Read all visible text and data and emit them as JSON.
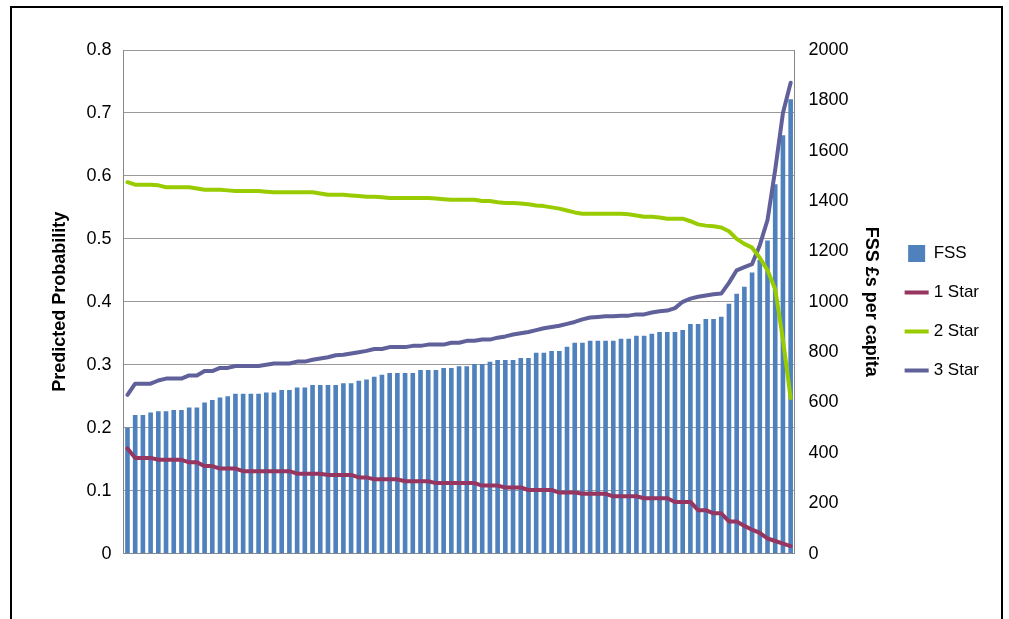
{
  "chart_data": {
    "type": "bar",
    "ylabel": "Predicted Probability",
    "y2label": "FSS £s per capita",
    "categories": [
      null,
      null,
      null,
      null,
      null,
      null,
      null,
      null,
      null,
      null,
      null,
      null,
      null,
      null,
      null,
      null,
      null,
      null,
      null,
      null,
      null,
      null,
      null,
      null,
      null,
      null,
      null,
      null,
      null,
      null,
      null,
      null,
      null,
      null,
      null,
      null,
      null,
      null,
      null,
      null,
      null,
      null,
      null,
      null,
      null,
      null,
      null,
      null,
      null,
      null,
      null,
      null,
      null,
      null,
      null,
      null,
      null,
      null,
      null,
      null,
      null,
      null,
      null,
      null,
      null,
      null,
      null,
      null,
      null,
      null,
      null,
      null,
      null,
      null,
      null,
      null,
      null,
      null,
      null,
      null,
      null,
      null,
      null,
      null,
      null,
      null,
      null
    ],
    "series": [
      {
        "name": "FSS",
        "axis": "y2",
        "color": "#4f81bd",
        "values": [
          500,
          550,
          550,
          560,
          565,
          565,
          570,
          570,
          580,
          580,
          600,
          610,
          620,
          625,
          635,
          635,
          635,
          635,
          640,
          640,
          650,
          650,
          660,
          660,
          670,
          670,
          670,
          670,
          677,
          677,
          686,
          691,
          702,
          710,
          717,
          717,
          717,
          717,
          729,
          729,
          729,
          737,
          737,
          744,
          744,
          753,
          753,
          762,
          769,
          769,
          769,
          777,
          777,
          798,
          798,
          805,
          805,
          821,
          837,
          837,
          845,
          845,
          845,
          845,
          853,
          853,
          865,
          865,
          873,
          880,
          880,
          880,
          888,
          912,
          912,
          932,
          932,
          941,
          992,
          1032,
          1060,
          1116,
          1167,
          1243,
          1467,
          1661,
          1804
        ]
      },
      {
        "name": "1 Star",
        "type": "line",
        "color": "#953560",
        "values": [
          0.167,
          0.152,
          0.152,
          0.152,
          0.149,
          0.149,
          0.149,
          0.149,
          0.145,
          0.145,
          0.139,
          0.139,
          0.135,
          0.135,
          0.135,
          0.131,
          0.131,
          0.131,
          0.131,
          0.131,
          0.131,
          0.131,
          0.127,
          0.127,
          0.127,
          0.127,
          0.125,
          0.125,
          0.125,
          0.125,
          0.121,
          0.121,
          0.118,
          0.118,
          0.118,
          0.118,
          0.115,
          0.115,
          0.115,
          0.115,
          0.112,
          0.112,
          0.112,
          0.112,
          0.112,
          0.112,
          0.108,
          0.108,
          0.108,
          0.105,
          0.105,
          0.105,
          0.101,
          0.101,
          0.101,
          0.101,
          0.097,
          0.097,
          0.097,
          0.095,
          0.095,
          0.095,
          0.095,
          0.091,
          0.091,
          0.091,
          0.091,
          0.088,
          0.088,
          0.088,
          0.088,
          0.082,
          0.082,
          0.082,
          0.069,
          0.069,
          0.064,
          0.064,
          0.051,
          0.051,
          0.044,
          0.038,
          0.033,
          0.024,
          0.02,
          0.016,
          0.012
        ]
      },
      {
        "name": "2 Star",
        "type": "line",
        "color": "#99cc00",
        "values": [
          0.59,
          0.586,
          0.586,
          0.586,
          0.585,
          0.582,
          0.582,
          0.582,
          0.582,
          0.58,
          0.578,
          0.578,
          0.578,
          0.577,
          0.576,
          0.576,
          0.576,
          0.576,
          0.575,
          0.574,
          0.574,
          0.574,
          0.574,
          0.574,
          0.574,
          0.572,
          0.57,
          0.57,
          0.57,
          0.569,
          0.568,
          0.567,
          0.567,
          0.566,
          0.565,
          0.565,
          0.565,
          0.565,
          0.565,
          0.565,
          0.564,
          0.563,
          0.562,
          0.562,
          0.562,
          0.562,
          0.56,
          0.56,
          0.558,
          0.557,
          0.557,
          0.556,
          0.555,
          0.553,
          0.552,
          0.55,
          0.548,
          0.545,
          0.542,
          0.54,
          0.54,
          0.54,
          0.54,
          0.54,
          0.54,
          0.539,
          0.537,
          0.535,
          0.535,
          0.534,
          0.532,
          0.532,
          0.532,
          0.528,
          0.523,
          0.521,
          0.52,
          0.518,
          0.512,
          0.5,
          0.492,
          0.486,
          0.47,
          0.45,
          0.42,
          0.34,
          0.247
        ]
      },
      {
        "name": "3 Star",
        "type": "line",
        "color": "#60609a",
        "values": [
          0.252,
          0.27,
          0.27,
          0.27,
          0.275,
          0.278,
          0.278,
          0.278,
          0.283,
          0.283,
          0.29,
          0.29,
          0.295,
          0.295,
          0.298,
          0.298,
          0.298,
          0.298,
          0.3,
          0.302,
          0.302,
          0.302,
          0.305,
          0.305,
          0.308,
          0.31,
          0.312,
          0.315,
          0.316,
          0.318,
          0.32,
          0.322,
          0.325,
          0.325,
          0.328,
          0.328,
          0.328,
          0.33,
          0.33,
          0.332,
          0.332,
          0.332,
          0.335,
          0.335,
          0.338,
          0.338,
          0.34,
          0.34,
          0.343,
          0.345,
          0.348,
          0.35,
          0.352,
          0.355,
          0.358,
          0.36,
          0.362,
          0.365,
          0.368,
          0.372,
          0.375,
          0.376,
          0.377,
          0.377,
          0.378,
          0.378,
          0.38,
          0.38,
          0.383,
          0.385,
          0.386,
          0.39,
          0.4,
          0.405,
          0.408,
          0.41,
          0.412,
          0.413,
          0.43,
          0.45,
          0.455,
          0.46,
          0.49,
          0.53,
          0.61,
          0.7,
          0.748
        ]
      }
    ],
    "ylim": [
      0,
      0.8
    ],
    "yticks": [
      0,
      0.1,
      0.2,
      0.3,
      0.4,
      0.5,
      0.6,
      0.7,
      0.8
    ],
    "y2lim": [
      0,
      2000
    ],
    "y2ticks": [
      0,
      200,
      400,
      600,
      800,
      1000,
      1200,
      1400,
      1600,
      1800,
      2000
    ],
    "grid": "y",
    "legend": "right",
    "marker": "none",
    "line_style": "solid"
  }
}
